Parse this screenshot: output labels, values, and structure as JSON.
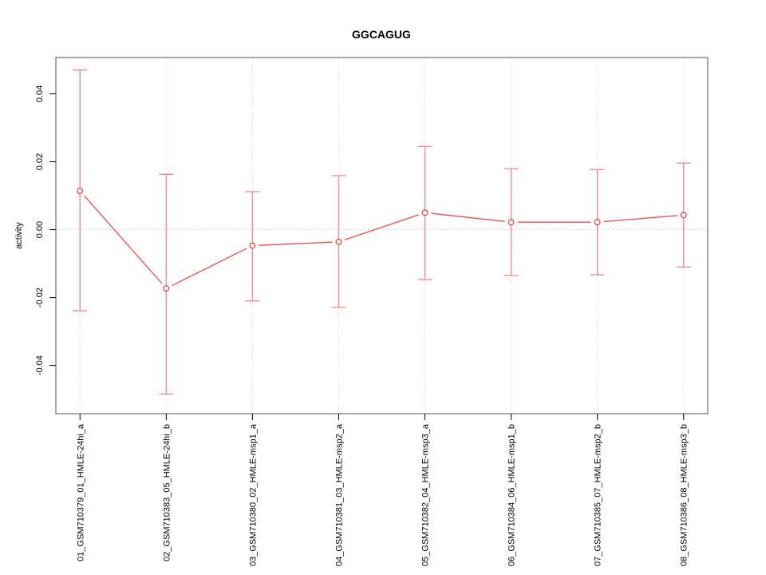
{
  "chart_data": {
    "type": "line",
    "title": "GGCAGUG",
    "xlabel": "",
    "ylabel": "activity",
    "categories": [
      "01_GSM710379_01_HMLE-24hi_a",
      "02_GSM710383_05_HMLE-24hi_b",
      "03_GSM710380_02_HMLE-msp1_a",
      "04_GSM710381_03_HMLE-msp2_a",
      "05_GSM710382_04_HMLE-msp3_a",
      "06_GSM710384_06_HMLE-msp1_b",
      "07_GSM710385_07_HMLE-msp2_b",
      "08_GSM710386_08_HMLE-msp3_b"
    ],
    "x": [
      1,
      2,
      3,
      4,
      5,
      6,
      7,
      8
    ],
    "series": [
      {
        "name": "activity",
        "values": [
          0.0114,
          -0.0173,
          -0.0047,
          -0.0036,
          0.005,
          0.0022,
          0.0022,
          0.0043
        ],
        "error_high": [
          0.047,
          0.0163,
          0.0112,
          0.0159,
          0.0245,
          0.0179,
          0.0177,
          0.0196
        ],
        "error_low": [
          -0.0239,
          -0.0484,
          -0.021,
          -0.0229,
          -0.0147,
          -0.0135,
          -0.0133,
          -0.011
        ]
      }
    ],
    "yticks": [
      -0.04,
      -0.02,
      0.0,
      0.02,
      0.04
    ],
    "ylim": [
      -0.0542,
      0.0507
    ],
    "xlim": [
      0.72,
      8.28
    ],
    "grid": {
      "vertical_dotted_per_category": true,
      "horizontal_dotted_at_zero": true
    },
    "legend": "none",
    "point_style": "open-circle",
    "colors": {
      "line": "#f84a4a",
      "point": "#f83535",
      "errorbar": "#f58c8c",
      "grid": "#d9d9d9",
      "zero_line": "#cccccc",
      "box": "#6e6e6e",
      "tick": "#000000",
      "text": "#000000",
      "background": "#ffffff"
    }
  }
}
